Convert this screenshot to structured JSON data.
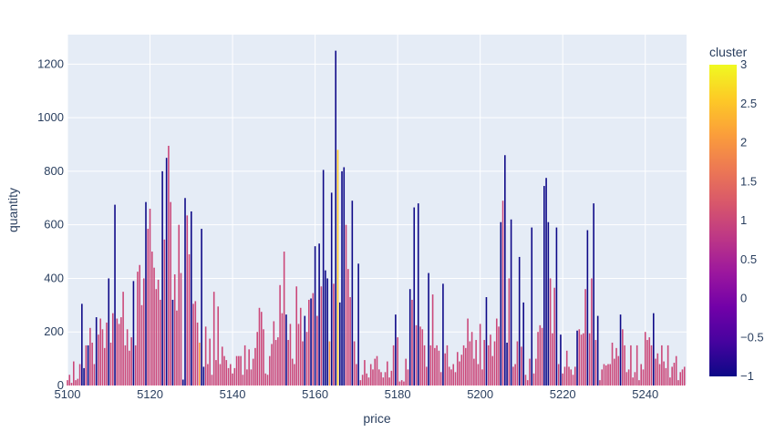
{
  "chart_data": {
    "type": "bar",
    "xlabel": "price",
    "ylabel": "quantity",
    "xlim": [
      5100,
      5250
    ],
    "ylim": [
      0,
      1310
    ],
    "x_ticks": [
      5100,
      5120,
      5140,
      5160,
      5180,
      5200,
      5220,
      5240
    ],
    "y_ticks": [
      0,
      200,
      400,
      600,
      800,
      1000,
      1200
    ],
    "grid": true,
    "colorbar": {
      "title": "cluster",
      "min": -1,
      "max": 3,
      "ticks": [
        3,
        2.5,
        2,
        1.5,
        1,
        0.5,
        0,
        -0.5,
        -1
      ],
      "tick_labels": [
        "3",
        "2.5",
        "2",
        "1.5",
        "1",
        "0.5",
        "0",
        "−0.5",
        "−1"
      ],
      "colorscale": [
        "#0d0887",
        "#46039f",
        "#7201a8",
        "#9c179e",
        "#bd3786",
        "#d8576b",
        "#ed7953",
        "#fb9f3a",
        "#fdca26",
        "#f0f921"
      ]
    },
    "bar_width": 0.35,
    "points": [
      [
        5100.0,
        20,
        1
      ],
      [
        5100.5,
        40,
        1
      ],
      [
        5101.0,
        10,
        1
      ],
      [
        5101.5,
        90,
        1
      ],
      [
        5102.0,
        20,
        1
      ],
      [
        5102.5,
        25,
        1
      ],
      [
        5103.0,
        80,
        1
      ],
      [
        5103.5,
        305,
        -1
      ],
      [
        5104.0,
        65,
        -1
      ],
      [
        5104.5,
        150,
        1
      ],
      [
        5105.0,
        150,
        -1
      ],
      [
        5105.5,
        215,
        1
      ],
      [
        5106.0,
        160,
        1
      ],
      [
        5106.5,
        80,
        1
      ],
      [
        5107.0,
        255,
        -1
      ],
      [
        5107.5,
        190,
        1
      ],
      [
        5108.0,
        250,
        1
      ],
      [
        5108.5,
        210,
        1
      ],
      [
        5109.0,
        140,
        1
      ],
      [
        5109.5,
        235,
        1
      ],
      [
        5110.0,
        400,
        -1
      ],
      [
        5110.5,
        160,
        1
      ],
      [
        5111.0,
        270,
        1
      ],
      [
        5111.5,
        675,
        -1
      ],
      [
        5112.0,
        250,
        1
      ],
      [
        5112.5,
        230,
        1
      ],
      [
        5113.0,
        255,
        1
      ],
      [
        5113.5,
        350,
        1
      ],
      [
        5114.0,
        150,
        1
      ],
      [
        5114.5,
        210,
        1
      ],
      [
        5115.0,
        130,
        1
      ],
      [
        5115.5,
        180,
        1
      ],
      [
        5116.0,
        390,
        -1
      ],
      [
        5116.5,
        150,
        1
      ],
      [
        5117.0,
        425,
        1
      ],
      [
        5117.5,
        450,
        1
      ],
      [
        5118.0,
        300,
        1
      ],
      [
        5118.5,
        400,
        1
      ],
      [
        5119.0,
        685,
        -1
      ],
      [
        5119.5,
        585,
        1
      ],
      [
        5120.0,
        660,
        1
      ],
      [
        5120.5,
        500,
        1
      ],
      [
        5121.0,
        440,
        1
      ],
      [
        5121.5,
        360,
        1
      ],
      [
        5122.0,
        395,
        1
      ],
      [
        5122.5,
        320,
        1
      ],
      [
        5123.0,
        800,
        -1
      ],
      [
        5123.5,
        545,
        1
      ],
      [
        5124.0,
        850,
        -1
      ],
      [
        5124.5,
        895,
        1
      ],
      [
        5125.0,
        685,
        1
      ],
      [
        5125.5,
        320,
        -1
      ],
      [
        5126.0,
        415,
        1
      ],
      [
        5126.5,
        280,
        1
      ],
      [
        5127.0,
        600,
        1
      ],
      [
        5127.5,
        420,
        1
      ],
      [
        5128.0,
        22,
        -1
      ],
      [
        5128.5,
        700,
        -1
      ],
      [
        5129.0,
        635,
        1
      ],
      [
        5129.5,
        490,
        1
      ],
      [
        5130.0,
        650,
        -1
      ],
      [
        5130.5,
        305,
        1
      ],
      [
        5131.0,
        315,
        1
      ],
      [
        5131.5,
        235,
        1
      ],
      [
        5132.0,
        160,
        2
      ],
      [
        5132.5,
        585,
        -1
      ],
      [
        5133.0,
        70,
        -1
      ],
      [
        5133.5,
        220,
        1
      ],
      [
        5134.0,
        80,
        1
      ],
      [
        5134.5,
        175,
        1
      ],
      [
        5135.0,
        40,
        1
      ],
      [
        5135.5,
        350,
        1
      ],
      [
        5136.0,
        95,
        1
      ],
      [
        5136.5,
        295,
        1
      ],
      [
        5137.0,
        80,
        1
      ],
      [
        5137.5,
        145,
        1
      ],
      [
        5138.0,
        110,
        1
      ],
      [
        5138.5,
        95,
        1
      ],
      [
        5139.0,
        65,
        1
      ],
      [
        5139.5,
        80,
        1
      ],
      [
        5140.0,
        45,
        1
      ],
      [
        5140.5,
        65,
        1
      ],
      [
        5141.0,
        110,
        1
      ],
      [
        5141.5,
        110,
        1
      ],
      [
        5142.0,
        110,
        1
      ],
      [
        5142.5,
        40,
        1
      ],
      [
        5143.0,
        150,
        1
      ],
      [
        5143.5,
        60,
        1
      ],
      [
        5144.0,
        135,
        1
      ],
      [
        5144.5,
        60,
        1
      ],
      [
        5145.0,
        100,
        1
      ],
      [
        5145.5,
        140,
        1
      ],
      [
        5146.0,
        200,
        1
      ],
      [
        5146.5,
        290,
        1
      ],
      [
        5147.0,
        275,
        1
      ],
      [
        5147.5,
        210,
        1
      ],
      [
        5148.0,
        45,
        1
      ],
      [
        5148.5,
        40,
        1
      ],
      [
        5149.0,
        110,
        1
      ],
      [
        5149.5,
        155,
        1
      ],
      [
        5150.0,
        240,
        1
      ],
      [
        5150.5,
        170,
        1
      ],
      [
        5151.0,
        180,
        1
      ],
      [
        5151.5,
        375,
        1
      ],
      [
        5152.0,
        270,
        1
      ],
      [
        5152.5,
        500,
        1
      ],
      [
        5153.0,
        265,
        -1
      ],
      [
        5153.5,
        170,
        1
      ],
      [
        5154.0,
        230,
        1
      ],
      [
        5154.5,
        100,
        1
      ],
      [
        5155.0,
        80,
        1
      ],
      [
        5155.5,
        370,
        1
      ],
      [
        5156.0,
        230,
        1
      ],
      [
        5156.5,
        290,
        1
      ],
      [
        5157.0,
        165,
        1
      ],
      [
        5157.5,
        260,
        -1
      ],
      [
        5158.0,
        200,
        1
      ],
      [
        5158.5,
        320,
        1
      ],
      [
        5159.0,
        325,
        -1
      ],
      [
        5159.5,
        345,
        1
      ],
      [
        5160.0,
        520,
        -1
      ],
      [
        5160.5,
        260,
        1
      ],
      [
        5161.0,
        530,
        -1
      ],
      [
        5161.5,
        370,
        1
      ],
      [
        5162.0,
        805,
        -1
      ],
      [
        5162.5,
        430,
        -1
      ],
      [
        5163.0,
        400,
        -1
      ],
      [
        5163.5,
        165,
        2
      ],
      [
        5164.0,
        720,
        -1
      ],
      [
        5164.5,
        380,
        1
      ],
      [
        5165.0,
        1250,
        -1
      ],
      [
        5165.5,
        880,
        2.5
      ],
      [
        5166.0,
        310,
        -1
      ],
      [
        5166.5,
        800,
        -1
      ],
      [
        5167.0,
        815,
        -1
      ],
      [
        5167.5,
        600,
        1
      ],
      [
        5168.0,
        435,
        1
      ],
      [
        5168.5,
        330,
        1
      ],
      [
        5169.0,
        690,
        -1
      ],
      [
        5169.5,
        165,
        1
      ],
      [
        5170.0,
        80,
        1
      ],
      [
        5170.5,
        455,
        -1
      ],
      [
        5171.0,
        20,
        1
      ],
      [
        5171.5,
        40,
        1
      ],
      [
        5172.0,
        95,
        1
      ],
      [
        5172.5,
        45,
        1
      ],
      [
        5173.0,
        30,
        1
      ],
      [
        5173.5,
        80,
        1
      ],
      [
        5174.0,
        60,
        1
      ],
      [
        5174.5,
        100,
        1
      ],
      [
        5175.0,
        110,
        1
      ],
      [
        5175.5,
        60,
        1
      ],
      [
        5176.0,
        50,
        1
      ],
      [
        5176.5,
        30,
        1
      ],
      [
        5177.0,
        50,
        1
      ],
      [
        5177.5,
        90,
        1
      ],
      [
        5178.0,
        30,
        1
      ],
      [
        5178.5,
        55,
        1
      ],
      [
        5179.0,
        150,
        1
      ],
      [
        5179.5,
        265,
        -1
      ],
      [
        5180.0,
        180,
        1
      ],
      [
        5180.5,
        15,
        1
      ],
      [
        5181.0,
        20,
        1
      ],
      [
        5181.5,
        15,
        1
      ],
      [
        5182.0,
        100,
        1
      ],
      [
        5182.5,
        60,
        1
      ],
      [
        5183.0,
        360,
        -1
      ],
      [
        5183.5,
        320,
        1
      ],
      [
        5184.0,
        665,
        -1
      ],
      [
        5184.5,
        225,
        1
      ],
      [
        5185.0,
        680,
        -1
      ],
      [
        5185.5,
        220,
        1
      ],
      [
        5186.0,
        210,
        1
      ],
      [
        5186.5,
        150,
        1
      ],
      [
        5187.0,
        70,
        1
      ],
      [
        5187.5,
        420,
        -1
      ],
      [
        5188.0,
        150,
        1
      ],
      [
        5188.5,
        340,
        1
      ],
      [
        5189.0,
        140,
        1
      ],
      [
        5189.5,
        150,
        1
      ],
      [
        5190.0,
        130,
        1
      ],
      [
        5190.5,
        50,
        1
      ],
      [
        5191.0,
        380,
        -1
      ],
      [
        5191.5,
        120,
        1
      ],
      [
        5192.0,
        150,
        1
      ],
      [
        5192.5,
        70,
        1
      ],
      [
        5193.0,
        60,
        1
      ],
      [
        5193.5,
        80,
        1
      ],
      [
        5194.0,
        50,
        1
      ],
      [
        5194.5,
        125,
        1
      ],
      [
        5195.0,
        90,
        1
      ],
      [
        5195.5,
        115,
        1
      ],
      [
        5196.0,
        150,
        1
      ],
      [
        5196.5,
        140,
        1
      ],
      [
        5197.0,
        250,
        1
      ],
      [
        5197.5,
        165,
        1
      ],
      [
        5198.0,
        200,
        1
      ],
      [
        5198.5,
        100,
        1
      ],
      [
        5199.0,
        170,
        1
      ],
      [
        5199.5,
        80,
        1
      ],
      [
        5200.0,
        230,
        1
      ],
      [
        5200.5,
        60,
        1
      ],
      [
        5201.0,
        170,
        1
      ],
      [
        5201.5,
        330,
        -1
      ],
      [
        5202.0,
        150,
        1
      ],
      [
        5202.5,
        190,
        1
      ],
      [
        5203.0,
        110,
        1
      ],
      [
        5203.5,
        165,
        1
      ],
      [
        5204.0,
        250,
        1
      ],
      [
        5204.5,
        220,
        1
      ],
      [
        5205.0,
        610,
        -1
      ],
      [
        5205.5,
        690,
        1
      ],
      [
        5206.0,
        860,
        -1
      ],
      [
        5206.5,
        160,
        -1
      ],
      [
        5207.0,
        400,
        1
      ],
      [
        5207.5,
        620,
        -1
      ],
      [
        5208.0,
        70,
        1
      ],
      [
        5208.5,
        80,
        1
      ],
      [
        5209.0,
        165,
        1
      ],
      [
        5209.5,
        480,
        -1
      ],
      [
        5210.0,
        145,
        1
      ],
      [
        5210.5,
        310,
        -1
      ],
      [
        5211.0,
        40,
        1
      ],
      [
        5211.5,
        20,
        1
      ],
      [
        5212.0,
        100,
        1
      ],
      [
        5212.5,
        590,
        -1
      ],
      [
        5213.0,
        45,
        1
      ],
      [
        5213.5,
        100,
        1
      ],
      [
        5214.0,
        200,
        1
      ],
      [
        5214.5,
        225,
        1
      ],
      [
        5215.0,
        215,
        1
      ],
      [
        5215.5,
        745,
        -1
      ],
      [
        5216.0,
        775,
        -1
      ],
      [
        5216.5,
        610,
        -1
      ],
      [
        5217.0,
        400,
        1
      ],
      [
        5217.5,
        195,
        1
      ],
      [
        5218.0,
        365,
        1
      ],
      [
        5218.5,
        590,
        -1
      ],
      [
        5219.0,
        80,
        1
      ],
      [
        5219.5,
        190,
        -1
      ],
      [
        5220.0,
        45,
        1
      ],
      [
        5220.5,
        70,
        1
      ],
      [
        5221.0,
        130,
        1
      ],
      [
        5221.5,
        70,
        1
      ],
      [
        5222.0,
        60,
        1
      ],
      [
        5222.5,
        40,
        1
      ],
      [
        5223.0,
        70,
        1
      ],
      [
        5223.5,
        205,
        -1
      ],
      [
        5224.0,
        210,
        1
      ],
      [
        5224.5,
        190,
        1
      ],
      [
        5225.0,
        195,
        1
      ],
      [
        5225.5,
        360,
        1
      ],
      [
        5226.0,
        580,
        -1
      ],
      [
        5226.5,
        195,
        1
      ],
      [
        5227.0,
        400,
        1
      ],
      [
        5227.5,
        680,
        -1
      ],
      [
        5228.0,
        170,
        1
      ],
      [
        5228.5,
        260,
        -1
      ],
      [
        5229.0,
        20,
        1
      ],
      [
        5229.5,
        60,
        1
      ],
      [
        5230.0,
        80,
        1
      ],
      [
        5230.5,
        75,
        1
      ],
      [
        5231.0,
        80,
        1
      ],
      [
        5231.5,
        80,
        1
      ],
      [
        5232.0,
        160,
        1
      ],
      [
        5232.5,
        100,
        1
      ],
      [
        5233.0,
        140,
        1
      ],
      [
        5233.5,
        110,
        1
      ],
      [
        5234.0,
        265,
        -1
      ],
      [
        5234.5,
        210,
        1
      ],
      [
        5235.0,
        150,
        1
      ],
      [
        5235.5,
        50,
        1
      ],
      [
        5236.0,
        60,
        1
      ],
      [
        5236.5,
        150,
        1
      ],
      [
        5237.0,
        30,
        1
      ],
      [
        5237.5,
        50,
        1
      ],
      [
        5238.0,
        150,
        1
      ],
      [
        5238.5,
        20,
        1
      ],
      [
        5239.0,
        80,
        1
      ],
      [
        5239.5,
        60,
        1
      ],
      [
        5240.0,
        200,
        1
      ],
      [
        5240.5,
        170,
        1
      ],
      [
        5241.0,
        180,
        1
      ],
      [
        5241.5,
        150,
        1
      ],
      [
        5242.0,
        270,
        -1
      ],
      [
        5242.5,
        100,
        1
      ],
      [
        5243.0,
        120,
        1
      ],
      [
        5243.5,
        80,
        1
      ],
      [
        5244.0,
        150,
        1
      ],
      [
        5244.5,
        90,
        1
      ],
      [
        5245.0,
        65,
        1
      ],
      [
        5245.5,
        150,
        1
      ],
      [
        5246.0,
        30,
        1
      ],
      [
        5246.5,
        70,
        1
      ],
      [
        5247.0,
        85,
        1
      ],
      [
        5247.5,
        110,
        1
      ],
      [
        5248.0,
        20,
        1
      ],
      [
        5248.5,
        50,
        1
      ],
      [
        5249.0,
        60,
        1
      ],
      [
        5249.5,
        70,
        1
      ]
    ]
  }
}
